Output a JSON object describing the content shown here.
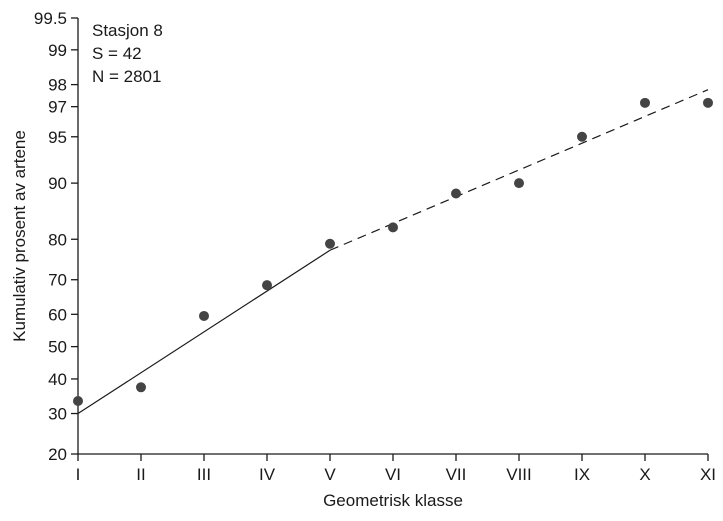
{
  "chart_data": {
    "type": "scatter",
    "title": "",
    "xlabel": "Geometrisk klasse",
    "ylabel": "Kumulativ prosent av artene",
    "y_scale": "probability",
    "annotation": {
      "station": "Stasjon 8",
      "s": "S = 42",
      "n": "N = 2801"
    },
    "categories": [
      "I",
      "II",
      "III",
      "IV",
      "V",
      "VI",
      "VII",
      "VIII",
      "IX",
      "X",
      "XI"
    ],
    "yticks": [
      20,
      30,
      40,
      50,
      60,
      70,
      80,
      90,
      95,
      97,
      98,
      99,
      99.5
    ],
    "ytick_labels": [
      "20",
      "30",
      "40",
      "50",
      "60",
      "70",
      "80",
      "90",
      "95",
      "97",
      "98",
      "99",
      "99.5"
    ],
    "ylim": [
      20,
      99.5
    ],
    "series": [
      {
        "values": [
          33.5,
          37.5,
          59.5,
          68.5,
          79,
          82.5,
          88.5,
          90,
          95,
          97.2,
          97.2
        ]
      }
    ],
    "fit_lines": [
      {
        "style": "solid",
        "from": {
          "x": "I",
          "y": 30
        },
        "to": {
          "x": "V",
          "y": 77.5
        }
      },
      {
        "style": "dashed",
        "from": {
          "x": "V",
          "y": 77.5
        },
        "to": {
          "x": "XI",
          "y": 97.8
        }
      }
    ],
    "grid": false,
    "colors": {
      "ink": "#1a1a1a",
      "point": "#444444"
    }
  }
}
